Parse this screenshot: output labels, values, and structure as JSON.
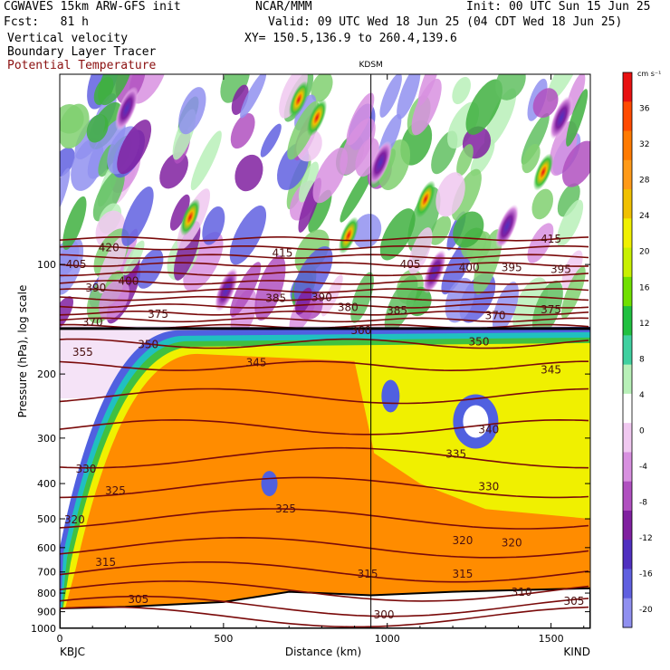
{
  "header": {
    "model": "CGWAVES 15km ARW-GFS init",
    "fcst": "Fcst:   81 h",
    "org": "NCAR/MMM",
    "init": "Init: 00 UTC Sun 15 Jun 25",
    "valid": "Valid: 09 UTC Wed 18 Jun 25 (04 CDT Wed 18 Jun 25)",
    "xy": "XY= 150.5,136.9 to 260.4,139.6",
    "fields": [
      "Vertical velocity",
      "Boundary Layer Tracer",
      "Potential Temperature"
    ]
  },
  "colors": {
    "theta_contour": "#7a0a0a",
    "tropopause": "#000000",
    "ground": "#ffffff"
  },
  "chart_data": {
    "type": "heatmap",
    "xlabel": "Distance (km)",
    "ylabel": "Pressure (hPa), log scale",
    "x_ticks": [
      0,
      500,
      1000,
      1500
    ],
    "x_range": [
      0,
      1620
    ],
    "y_ticks": [
      100,
      200,
      300,
      400,
      500,
      600,
      700,
      800,
      900,
      1000
    ],
    "y_scale": "log",
    "y_range": [
      1000,
      30
    ],
    "left_station": "KBJC",
    "right_station": "KIND",
    "mid_station": "KDSM",
    "mid_station_distance": 950,
    "colorbar": {
      "unit": "cm s⁻¹",
      "ticks": [
        36,
        32,
        28,
        24,
        20,
        16,
        12,
        8,
        4,
        0,
        -4,
        -8,
        -12,
        -16,
        -20
      ],
      "colors": [
        "#e81010",
        "#ff4a00",
        "#ff7a00",
        "#ff9a18",
        "#f0c000",
        "#f0f000",
        "#c8f000",
        "#70e000",
        "#20c040",
        "#40d0a0",
        "#b8f0b8",
        "#ffffff",
        "#f0c8f0",
        "#d890e0",
        "#b050c0",
        "#8020a0",
        "#5030c0",
        "#6060e0",
        "#9090f0"
      ]
    },
    "theta_labels": [
      {
        "v": "420",
        "x": 150,
        "p": 90
      },
      {
        "v": "415",
        "x": 680,
        "p": 93
      },
      {
        "v": "415",
        "x": 1500,
        "p": 85
      },
      {
        "v": "405",
        "x": 50,
        "p": 100
      },
      {
        "v": "405",
        "x": 1070,
        "p": 100
      },
      {
        "v": "400",
        "x": 210,
        "p": 111
      },
      {
        "v": "400",
        "x": 1250,
        "p": 102
      },
      {
        "v": "395",
        "x": 1380,
        "p": 102
      },
      {
        "v": "395",
        "x": 1530,
        "p": 103
      },
      {
        "v": "390",
        "x": 110,
        "p": 116
      },
      {
        "v": "390",
        "x": 800,
        "p": 123
      },
      {
        "v": "385",
        "x": 660,
        "p": 124
      },
      {
        "v": "385",
        "x": 1030,
        "p": 134
      },
      {
        "v": "380",
        "x": 880,
        "p": 131
      },
      {
        "v": "375",
        "x": 300,
        "p": 137
      },
      {
        "v": "375",
        "x": 1500,
        "p": 133
      },
      {
        "v": "370",
        "x": 100,
        "p": 144
      },
      {
        "v": "370",
        "x": 1330,
        "p": 138
      },
      {
        "v": "360",
        "x": 920,
        "p": 152
      },
      {
        "v": "355",
        "x": 70,
        "p": 174
      },
      {
        "v": "350",
        "x": 270,
        "p": 166
      },
      {
        "v": "350",
        "x": 1280,
        "p": 163
      },
      {
        "v": "345",
        "x": 600,
        "p": 186
      },
      {
        "v": "345",
        "x": 1500,
        "p": 195
      },
      {
        "v": "340",
        "x": 1310,
        "p": 284
      },
      {
        "v": "335",
        "x": 1210,
        "p": 332
      },
      {
        "v": "330",
        "x": 80,
        "p": 365
      },
      {
        "v": "330",
        "x": 1310,
        "p": 408
      },
      {
        "v": "325",
        "x": 170,
        "p": 418
      },
      {
        "v": "325",
        "x": 690,
        "p": 470
      },
      {
        "v": "320",
        "x": 45,
        "p": 503
      },
      {
        "v": "320",
        "x": 1230,
        "p": 574
      },
      {
        "v": "320",
        "x": 1380,
        "p": 582
      },
      {
        "v": "315",
        "x": 140,
        "p": 658
      },
      {
        "v": "315",
        "x": 940,
        "p": 710
      },
      {
        "v": "315",
        "x": 1230,
        "p": 710
      },
      {
        "v": "310",
        "x": 1410,
        "p": 795
      },
      {
        "v": "305",
        "x": 240,
        "p": 833
      },
      {
        "v": "305",
        "x": 1570,
        "p": 842
      },
      {
        "v": "300",
        "x": 990,
        "p": 918
      }
    ]
  }
}
